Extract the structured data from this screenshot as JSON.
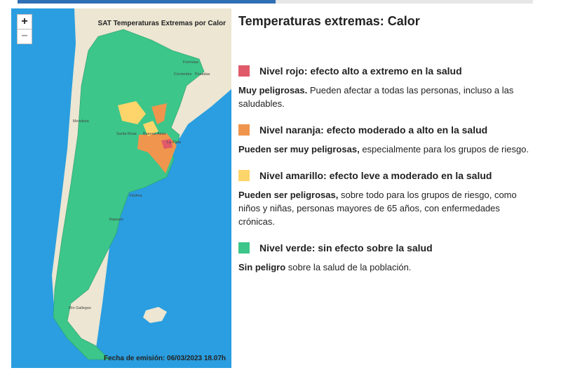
{
  "progress": {
    "filled": 0.5
  },
  "map": {
    "title": "SAT Temperaturas Extremas por Calor",
    "zoom_in": "+",
    "zoom_out": "−",
    "footer": "Fecha de emisión: 06/03/2023 18.07h",
    "places": [
      "Formosa",
      "Corrientes",
      "Posadas",
      "Mendoza",
      "Santa Rosa",
      "Buenos Aires",
      "La Plata",
      "Viedma",
      "Rawson",
      "Río Gallegos"
    ]
  },
  "heading": "Temperaturas extremas: Calor",
  "levels": [
    {
      "color": "#e05a6a",
      "title": "Nivel rojo: efecto alto a extremo en la salud",
      "strong": "Muy peligrosas.",
      "text": "Pueden afectar a todas las personas, incluso a las saludables."
    },
    {
      "color": "#f0954d",
      "title": "Nivel naranja: efecto moderado a alto en la salud",
      "strong": "Pueden ser muy peligrosas,",
      "text": "especialmente para los grupos de riesgo."
    },
    {
      "color": "#fdd56a",
      "title": "Nivel amarillo: efecto leve a moderado en la salud",
      "strong": "Pueden ser peligrosas,",
      "text": "sobre todo para los grupos de riesgo, como niños y niñas, personas mayores de 65 años, con enfermedades crónicas."
    },
    {
      "color": "#3cc68a",
      "title": "Nivel verde: sin efecto sobre la salud",
      "strong": "Sin peligro",
      "text": "sobre la salud de la población."
    }
  ]
}
